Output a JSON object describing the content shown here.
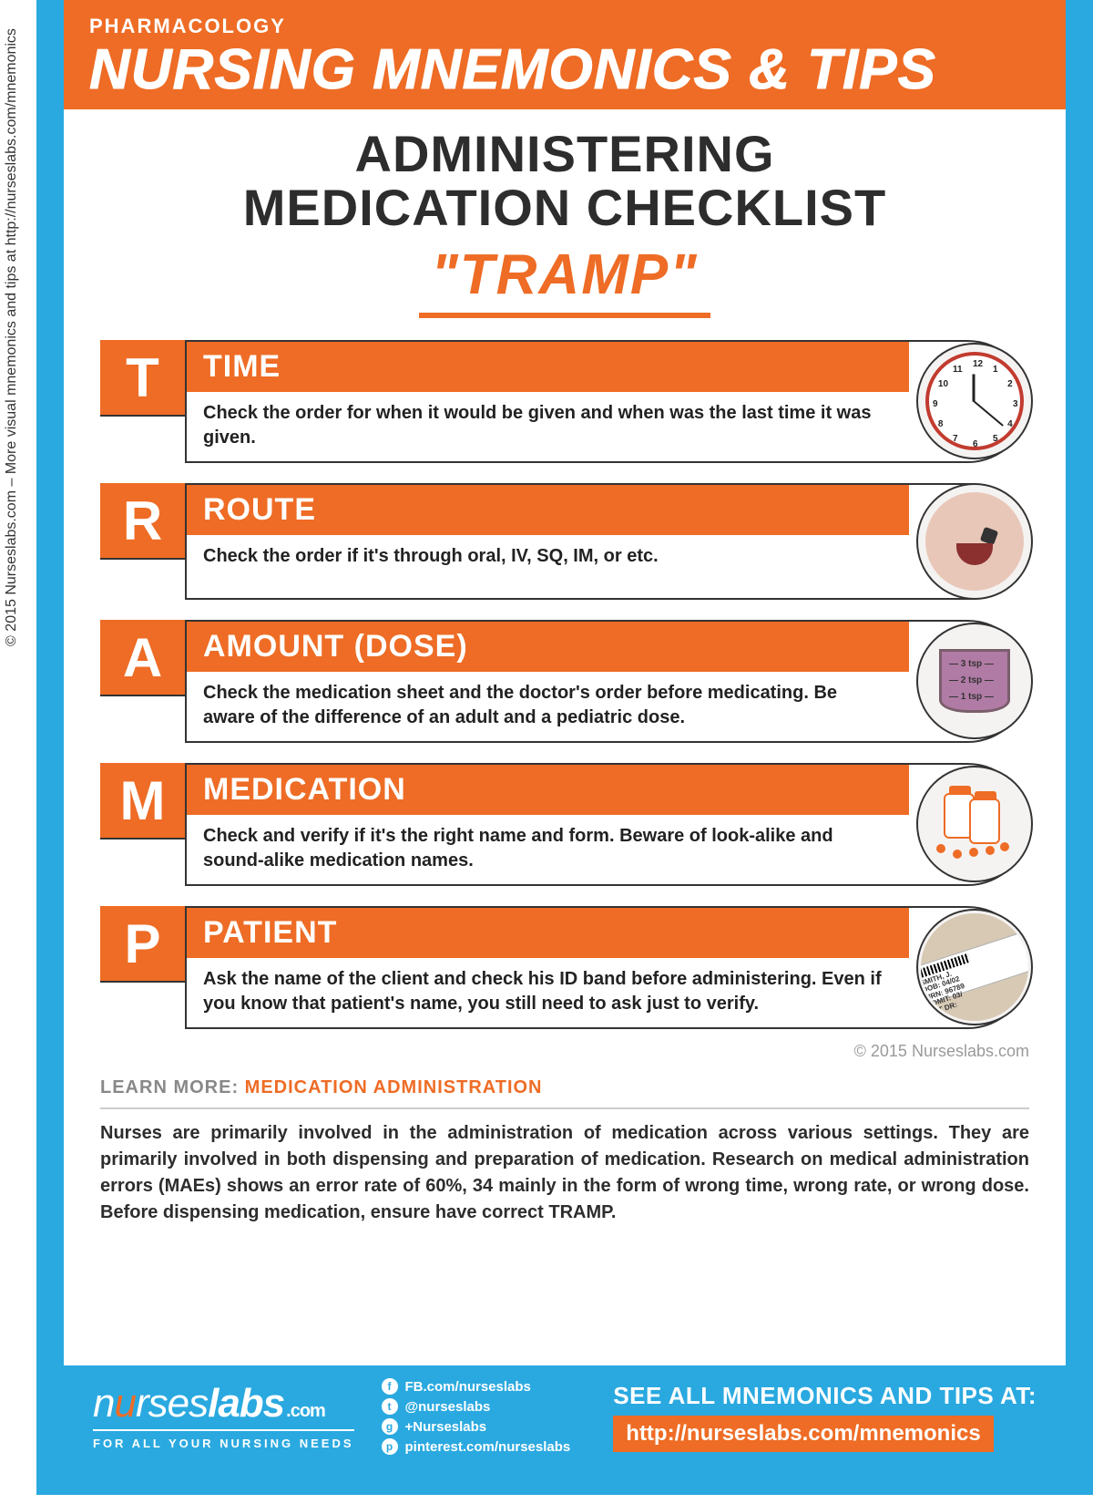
{
  "colors": {
    "blue": "#2aa9e0",
    "orange": "#ee6c25",
    "dark": "#2d2d2d",
    "gray": "#888888",
    "divider": "#cccccc",
    "white": "#ffffff"
  },
  "sidebar_copyright": "© 2015 Nurseslabs.com – More visual mnemonics and tips at http://nurseslabs.com/mnemonics",
  "header": {
    "category": "PHARMACOLOGY",
    "title": "NURSING MNEMONICS & TIPS"
  },
  "content": {
    "subtitle_line1": "ADMINISTERING",
    "subtitle_line2": "MEDICATION CHECKLIST",
    "mnemonic": "\"TRAMP\""
  },
  "items": [
    {
      "letter": "T",
      "term": "TIME",
      "description": "Check the order for when it would be given and when was the last time it was given.",
      "icon": "clock-icon"
    },
    {
      "letter": "R",
      "term": "ROUTE",
      "description": "Check the order if it's through oral, IV, SQ, IM, or etc.",
      "icon": "mouth-icon"
    },
    {
      "letter": "A",
      "term": "AMOUNT (DOSE)",
      "description": "Check the medication sheet and the doctor's order before medicating. Be aware of the difference of an adult and a pediatric dose.",
      "icon": "cup-icon",
      "cup_labels": [
        "— 3 tsp —",
        "— 2 tsp —",
        "— 1 tsp —"
      ]
    },
    {
      "letter": "M",
      "term": "MEDICATION",
      "description": "Check and verify if it's the right name and form. Beware of look-alike and sound-alike medication names.",
      "icon": "pills-icon"
    },
    {
      "letter": "P",
      "term": "PATIENT",
      "description": "Ask the name of the client and check his ID band before administering. Even if you know that patient's name, you still need to ask just to verify.",
      "icon": "wristband-icon",
      "band_lines": [
        "SMITH, J.",
        "DOB: 04/02",
        "MRN: 96789",
        "ADMIT: 03/",
        "ATT DR:"
      ]
    }
  ],
  "copyright_inline": "© 2015 Nurseslabs.com",
  "learn_more": {
    "label": "LEARN MORE: ",
    "topic": "MEDICATION ADMINISTRATION",
    "text": "Nurses are primarily involved in the administration of medication across various settings. They are primarily involved in both dispensing and preparation of medication. Research on medical administration errors (MAEs) shows an error rate of 60%, 34 mainly in the form of wrong time, wrong rate, or wrong dose. Before dispensing medication, ensure have correct TRAMP."
  },
  "footer": {
    "logo_prefix": "n",
    "logo_accent1": "u",
    "logo_mid": "rses",
    "logo_bold": "labs",
    "logo_com": ".com",
    "tagline": "FOR ALL YOUR NURSING NEEDS",
    "socials": [
      {
        "glyph": "f",
        "label": "FB.com/nurseslabs"
      },
      {
        "glyph": "t",
        "label": "@nurseslabs"
      },
      {
        "glyph": "g",
        "label": "+Nurseslabs"
      },
      {
        "glyph": "p",
        "label": "pinterest.com/nurseslabs"
      }
    ],
    "see_all": "SEE ALL MNEMONICS AND TIPS AT:",
    "url": "http://nurseslabs.com/mnemonics"
  }
}
